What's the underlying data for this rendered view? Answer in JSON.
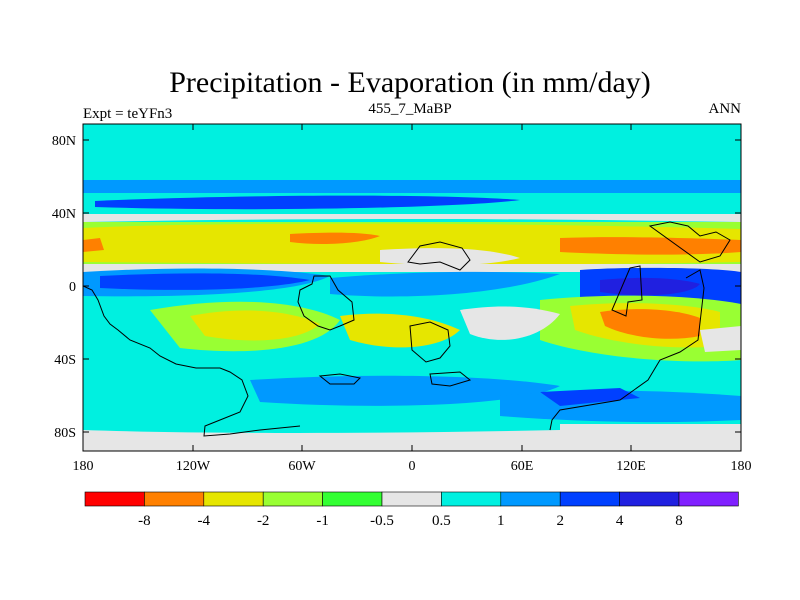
{
  "title": "Precipitation - Evaporation (in mm/day)",
  "subtitle": "455_7_MaBP",
  "left_label": "Expt = teYFn3",
  "right_label": "ANN",
  "lat_ticks": [
    "80N",
    "40N",
    "0",
    "40S",
    "80S"
  ],
  "lon_ticks": [
    "180",
    "120W",
    "60W",
    "0",
    "60E",
    "120E",
    "180"
  ],
  "colorbar": {
    "colors": [
      "#ff0000",
      "#ff8000",
      "#e6e600",
      "#99ff33",
      "#33ff33",
      "#e6e6e6",
      "#00f0e0",
      "#0099ff",
      "#0040ff",
      "#2020e0",
      "#8020ff"
    ],
    "labels": [
      "-8",
      "-4",
      "-2",
      "-1",
      "-0.5",
      "0.5",
      "1",
      "2",
      "4",
      "8"
    ]
  }
}
